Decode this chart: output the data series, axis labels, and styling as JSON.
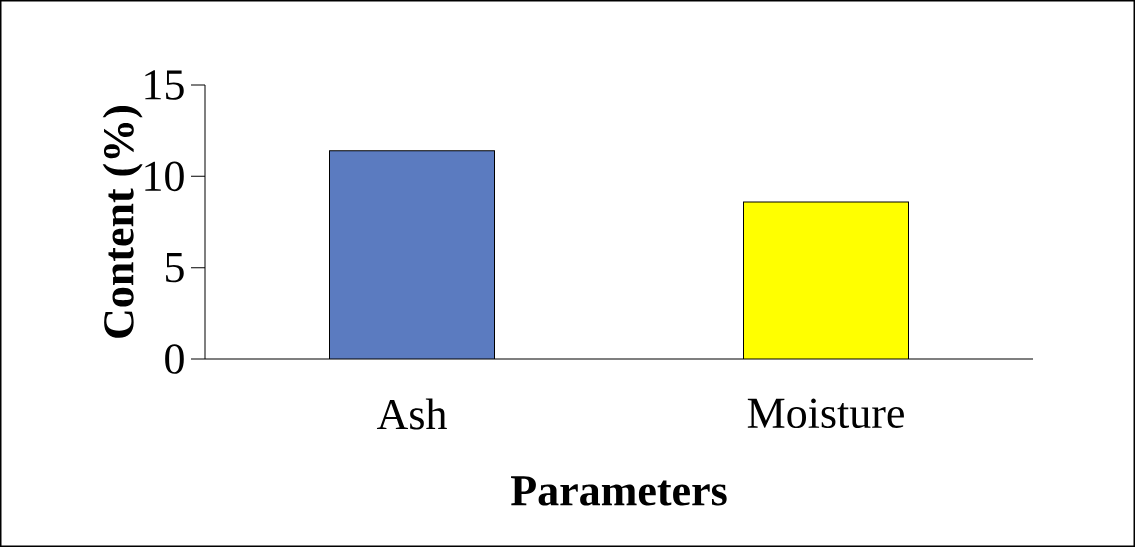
{
  "chart_data": {
    "type": "bar",
    "categories": [
      "Ash",
      "Moisture"
    ],
    "values": [
      11.4,
      8.6
    ],
    "colors": [
      "#5b7bc0",
      "#ffff00"
    ],
    "xlabel": "Parameters",
    "ylabel": "Content (%)",
    "ylim": [
      0,
      15
    ],
    "yticks": [
      0,
      5,
      10,
      15
    ]
  }
}
